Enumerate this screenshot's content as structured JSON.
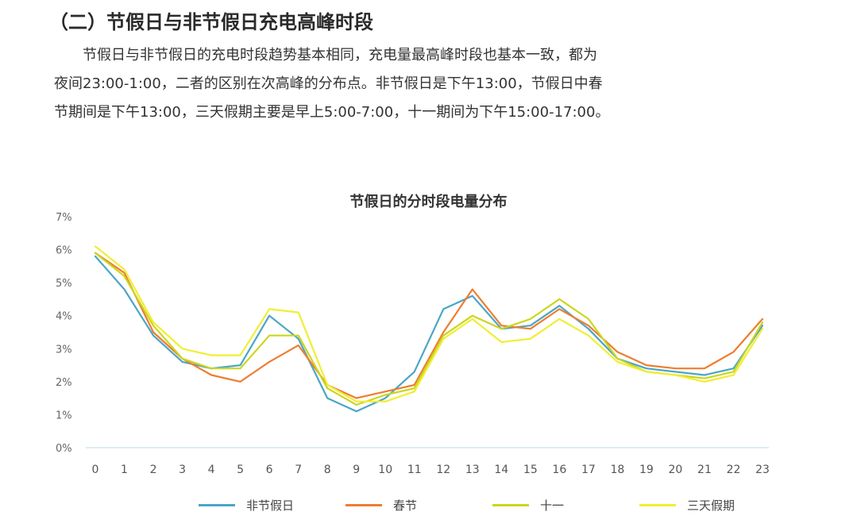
{
  "heading": "（二）节假日与非节假日充电高峰时段",
  "paragraph_lines": [
    "节假日与非节假日的充电时段趋势基本相同，充电量最高峰时段也基本一致，都为",
    "夜间23:00-1:00，二者的区别在次高峰的分布点。非节假日是下午13:00，节假日中春",
    "节期间是下午13:00，三天假期主要是早上5:00-7:00，十一期间为下午15:00-17:00。"
  ],
  "chart_data": {
    "type": "line",
    "title": "节假日的分时段电量分布",
    "xlabel": "",
    "ylabel": "",
    "x": [
      0,
      1,
      2,
      3,
      4,
      5,
      6,
      7,
      8,
      9,
      10,
      11,
      12,
      13,
      14,
      15,
      16,
      17,
      18,
      19,
      20,
      21,
      22,
      23
    ],
    "y_ticks": [
      "0%",
      "1%",
      "2%",
      "3%",
      "4%",
      "5%",
      "6%",
      "7%"
    ],
    "ylim": [
      0,
      7
    ],
    "legend_position": "bottom",
    "series": [
      {
        "name": "非节假日",
        "color": "#4aa6c6",
        "values": [
          5.8,
          4.8,
          3.4,
          2.6,
          2.4,
          2.5,
          4.0,
          3.3,
          1.5,
          1.1,
          1.5,
          2.3,
          4.2,
          4.6,
          3.6,
          3.7,
          4.3,
          3.6,
          2.7,
          2.4,
          2.3,
          2.2,
          2.4,
          3.7
        ]
      },
      {
        "name": "春节",
        "color": "#ee7d30",
        "values": [
          5.9,
          5.3,
          3.5,
          2.7,
          2.2,
          2.0,
          2.6,
          3.1,
          1.9,
          1.5,
          1.7,
          1.9,
          3.5,
          4.8,
          3.7,
          3.6,
          4.2,
          3.7,
          2.9,
          2.5,
          2.4,
          2.4,
          2.9,
          3.9
        ]
      },
      {
        "name": "十一",
        "color": "#cbd61f",
        "values": [
          5.9,
          5.2,
          3.7,
          2.7,
          2.4,
          2.4,
          3.4,
          3.4,
          1.8,
          1.3,
          1.6,
          1.8,
          3.4,
          4.0,
          3.6,
          3.9,
          4.5,
          3.9,
          2.7,
          2.3,
          2.2,
          2.1,
          2.3,
          3.8
        ]
      },
      {
        "name": "三天假期",
        "color": "#f0ee34",
        "values": [
          6.1,
          5.4,
          3.8,
          3.0,
          2.8,
          2.8,
          4.2,
          4.1,
          1.9,
          1.4,
          1.4,
          1.7,
          3.3,
          3.9,
          3.2,
          3.3,
          3.9,
          3.4,
          2.6,
          2.3,
          2.2,
          2.0,
          2.2,
          3.6
        ]
      }
    ]
  }
}
